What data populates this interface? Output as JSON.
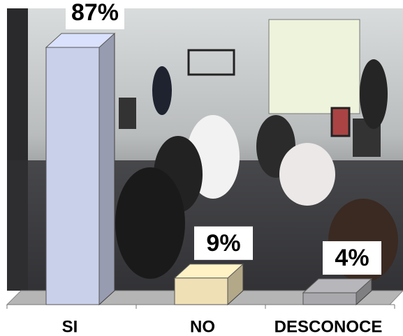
{
  "chart_data": {
    "type": "bar3d",
    "categories": [
      "SI",
      "NO",
      "DESCONOCE"
    ],
    "values": [
      87,
      9,
      4
    ],
    "value_labels": [
      "87%",
      "9%",
      "4%"
    ],
    "colors": [
      "#c9d0ea",
      "#efe0b6",
      "#a9a9ad"
    ]
  }
}
